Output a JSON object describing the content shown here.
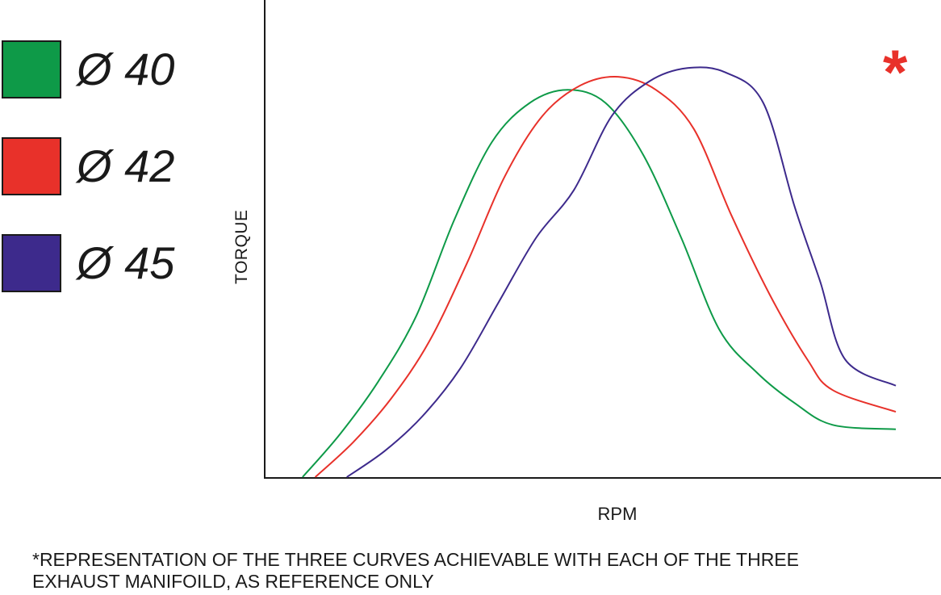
{
  "legend": [
    {
      "label": "Ø 40",
      "color": "#0e9a48"
    },
    {
      "label": "Ø 42",
      "color": "#e8312a"
    },
    {
      "label": "Ø 45",
      "color": "#3d2a8c"
    }
  ],
  "annotation": {
    "marker": "*",
    "marker_color": "#e8312a",
    "footnote": "*REPRESENTATION OF THE THREE CURVES ACHIEVABLE WITH EACH OF THE THREE\n EXHAUST MANIFOILD, AS REFERENCE ONLY"
  },
  "chart_data": {
    "type": "line",
    "title": "",
    "xlabel": "RPM",
    "ylabel": "TORQUE",
    "xlim": [
      0,
      100
    ],
    "ylim": [
      0,
      100
    ],
    "grid": false,
    "ticks": false,
    "legend_position": "left",
    "series": [
      {
        "name": "Ø 40",
        "color": "#0e9a48",
        "x": [
          6,
          12,
          18,
          24,
          30,
          36,
          42,
          48,
          54,
          60,
          66,
          72,
          78,
          84,
          90,
          100
        ],
        "y": [
          0,
          10,
          22,
          37,
          59,
          77,
          86,
          89,
          86,
          74,
          55,
          34,
          24,
          17,
          12,
          11
        ]
      },
      {
        "name": "Ø 42",
        "color": "#e8312a",
        "x": [
          8,
          14,
          20,
          26,
          32,
          38,
          44,
          50,
          56,
          62,
          68,
          74,
          80,
          86,
          90,
          100
        ],
        "y": [
          0,
          8,
          18,
          31,
          49,
          69,
          83,
          90,
          92,
          89,
          80,
          60,
          42,
          27,
          20,
          15
        ]
      },
      {
        "name": "Ø 45",
        "color": "#3d2a8c",
        "x": [
          13,
          19,
          25,
          31,
          37,
          43,
          49,
          55,
          61,
          67,
          73,
          79,
          84,
          88,
          92,
          100
        ],
        "y": [
          0,
          6,
          14,
          25,
          40,
          55,
          66,
          83,
          91,
          94,
          93,
          86,
          62,
          45,
          27,
          21
        ]
      }
    ]
  }
}
